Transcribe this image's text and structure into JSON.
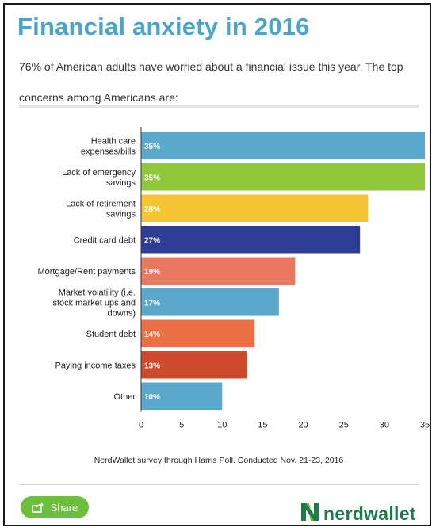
{
  "header": {
    "title": "Financial anxiety in 2016",
    "subtitle": "76% of American adults have worried about a financial issue this year. The top concerns among Americans are:"
  },
  "chart_data": {
    "type": "bar",
    "orientation": "horizontal",
    "categories": [
      "Health care expenses/bills",
      "Lack of emergency savings",
      "Lack of retirement savings",
      "Credit card debt",
      "Mortgage/Rent payments",
      "Market volatility (i.e. stock market ups and downs)",
      "Student debt",
      "Paying income taxes",
      "Other"
    ],
    "values": [
      35,
      35,
      28,
      27,
      19,
      17,
      14,
      13,
      10
    ],
    "value_labels": [
      "35%",
      "35%",
      "28%",
      "27%",
      "19%",
      "17%",
      "14%",
      "13%",
      "10%"
    ],
    "colors": [
      "#5aa9cd",
      "#8fc93a",
      "#f2c531",
      "#2d3d93",
      "#ea7760",
      "#5aa9cd",
      "#ea7044",
      "#cf4a2b",
      "#5aa9cd"
    ],
    "label_colors": [
      "#ffffff",
      "#ffffff",
      "#ffffff",
      "#ffffff",
      "#ffffff",
      "#ffffff",
      "#ffffff",
      "#ffffff",
      "#ffffff"
    ],
    "xlim": [
      0,
      35
    ],
    "xticks": [
      "0",
      "5",
      "10",
      "15",
      "20",
      "25",
      "30",
      "35"
    ],
    "grid": false
  },
  "footer": {
    "source": "NerdWallet survey through Harris Poll. Conducted Nov. 21-23, 2016",
    "share_label": "Share",
    "logo_text": "nerdwallet"
  },
  "colors": {
    "title": "#49a5c9",
    "share": "#6bbf3a",
    "logo": "#1e7a48"
  },
  "icons": {
    "share": "share-icon",
    "logo": "nerdwallet-n-logo-icon"
  }
}
